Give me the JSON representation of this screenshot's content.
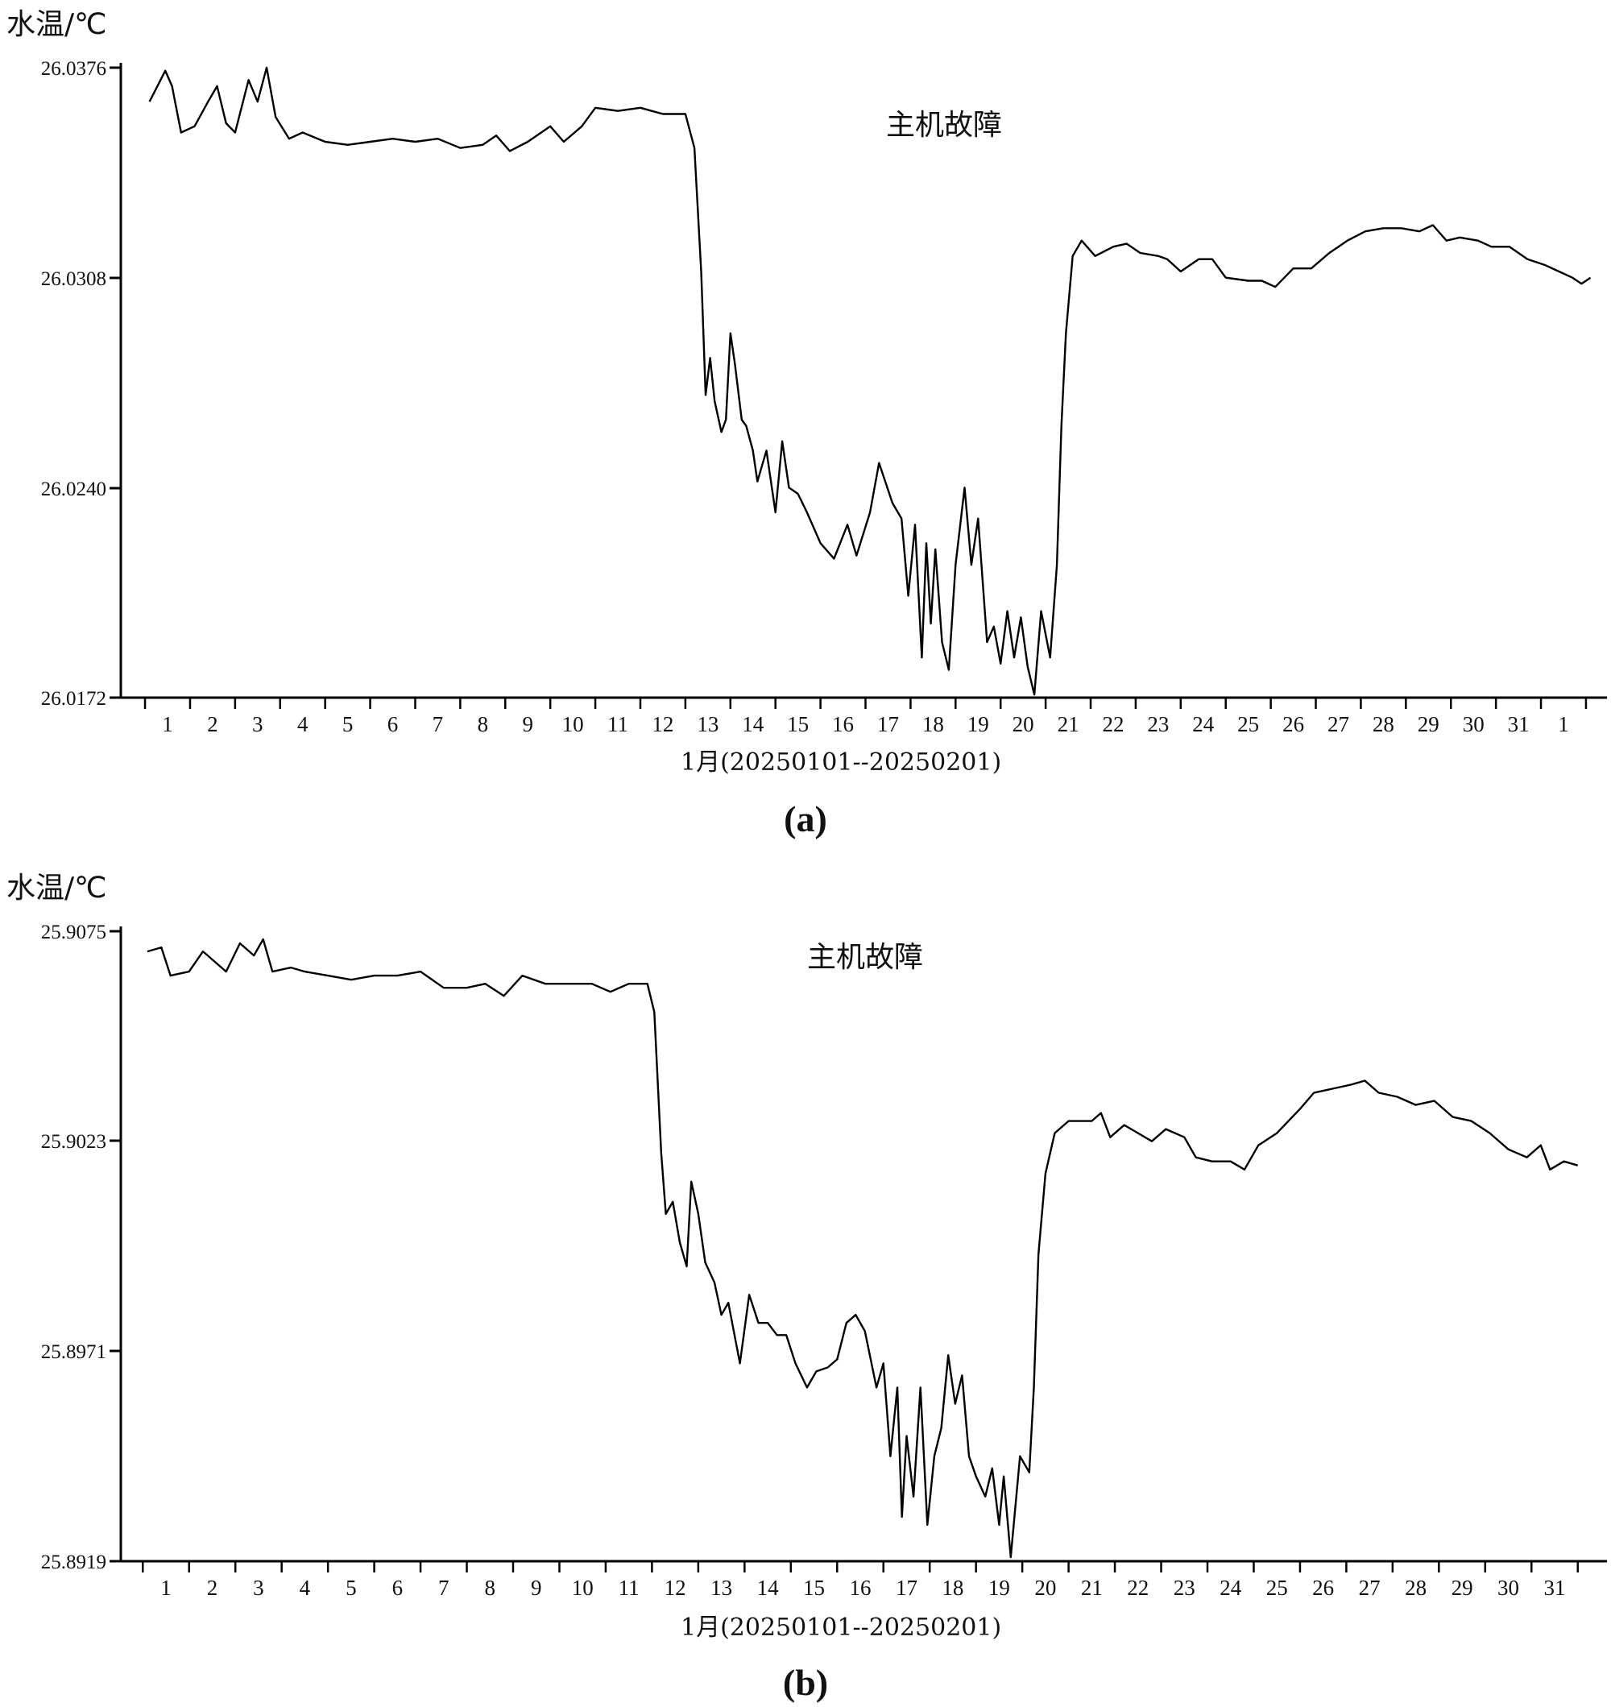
{
  "chart_data": [
    {
      "type": "line",
      "panel_label": "(a)",
      "ylabel": "水温/℃",
      "xlabel": "1月(20250101--20250201)",
      "annotation": "主机故障",
      "yticks": [
        "26.0376",
        "26.0308",
        "26.0240",
        "26.0172"
      ],
      "ylim": [
        26.0172,
        26.0376
      ],
      "xticks": [
        "1",
        "2",
        "3",
        "4",
        "5",
        "6",
        "7",
        "8",
        "9",
        "10",
        "11",
        "12",
        "13",
        "14",
        "15",
        "16",
        "17",
        "18",
        "19",
        "20",
        "21",
        "22",
        "23",
        "24",
        "25",
        "26",
        "27",
        "28",
        "29",
        "30",
        "31",
        "1"
      ],
      "x_day_range": [
        0.55,
        32.6
      ],
      "series": [
        {
          "values": [
            [
              0.6,
              26.0365
            ],
            [
              0.95,
              26.0375
            ],
            [
              1.1,
              26.037
            ],
            [
              1.3,
              26.0355
            ],
            [
              1.6,
              26.0357
            ],
            [
              1.9,
              26.0365
            ],
            [
              2.1,
              26.037
            ],
            [
              2.3,
              26.0358
            ],
            [
              2.5,
              26.0355
            ],
            [
              2.8,
              26.0372
            ],
            [
              3.0,
              26.0365
            ],
            [
              3.2,
              26.0376
            ],
            [
              3.4,
              26.036
            ],
            [
              3.7,
              26.0353
            ],
            [
              4.0,
              26.0355
            ],
            [
              4.5,
              26.0352
            ],
            [
              5.0,
              26.0351
            ],
            [
              5.5,
              26.0352
            ],
            [
              6.0,
              26.0353
            ],
            [
              6.5,
              26.0352
            ],
            [
              7.0,
              26.0353
            ],
            [
              7.5,
              26.035
            ],
            [
              8.0,
              26.0351
            ],
            [
              8.3,
              26.0354
            ],
            [
              8.6,
              26.0349
            ],
            [
              9.0,
              26.0352
            ],
            [
              9.5,
              26.0357
            ],
            [
              9.8,
              26.0352
            ],
            [
              10.2,
              26.0357
            ],
            [
              10.5,
              26.0363
            ],
            [
              11.0,
              26.0362
            ],
            [
              11.5,
              26.0363
            ],
            [
              12.0,
              26.0361
            ],
            [
              12.5,
              26.0361
            ],
            [
              12.7,
              26.035
            ],
            [
              12.85,
              26.031
            ],
            [
              12.95,
              26.027
            ],
            [
              13.05,
              26.0282
            ],
            [
              13.15,
              26.0268
            ],
            [
              13.3,
              26.0258
            ],
            [
              13.4,
              26.0262
            ],
            [
              13.5,
              26.029
            ],
            [
              13.6,
              26.028
            ],
            [
              13.75,
              26.0262
            ],
            [
              13.85,
              26.026
            ],
            [
              14.0,
              26.0252
            ],
            [
              14.1,
              26.0242
            ],
            [
              14.3,
              26.0252
            ],
            [
              14.5,
              26.0232
            ],
            [
              14.65,
              26.0255
            ],
            [
              14.8,
              26.024
            ],
            [
              15.0,
              26.0238
            ],
            [
              15.2,
              26.0232
            ],
            [
              15.5,
              26.0222
            ],
            [
              15.8,
              26.0217
            ],
            [
              16.1,
              26.0228
            ],
            [
              16.3,
              26.0218
            ],
            [
              16.6,
              26.0232
            ],
            [
              16.8,
              26.0248
            ],
            [
              17.1,
              26.0235
            ],
            [
              17.3,
              26.023
            ],
            [
              17.45,
              26.0205
            ],
            [
              17.6,
              26.0228
            ],
            [
              17.75,
              26.0185
            ],
            [
              17.85,
              26.0222
            ],
            [
              17.95,
              26.0196
            ],
            [
              18.05,
              26.022
            ],
            [
              18.2,
              26.019
            ],
            [
              18.35,
              26.0181
            ],
            [
              18.5,
              26.0215
            ],
            [
              18.7,
              26.024
            ],
            [
              18.85,
              26.0215
            ],
            [
              19.0,
              26.023
            ],
            [
              19.2,
              26.019
            ],
            [
              19.35,
              26.0195
            ],
            [
              19.5,
              26.0183
            ],
            [
              19.65,
              26.02
            ],
            [
              19.8,
              26.0185
            ],
            [
              19.95,
              26.0198
            ],
            [
              20.1,
              26.0182
            ],
            [
              20.25,
              26.0173
            ],
            [
              20.4,
              26.02
            ],
            [
              20.6,
              26.0185
            ],
            [
              20.75,
              26.0215
            ],
            [
              20.85,
              26.026
            ],
            [
              20.95,
              26.029
            ],
            [
              21.1,
              26.0315
            ],
            [
              21.3,
              26.032
            ],
            [
              21.6,
              26.0315
            ],
            [
              22.0,
              26.0318
            ],
            [
              22.3,
              26.0319
            ],
            [
              22.6,
              26.0316
            ],
            [
              23.0,
              26.0315
            ],
            [
              23.2,
              26.0314
            ],
            [
              23.5,
              26.031
            ],
            [
              23.9,
              26.0314
            ],
            [
              24.2,
              26.0314
            ],
            [
              24.5,
              26.0308
            ],
            [
              25.0,
              26.0307
            ],
            [
              25.3,
              26.0307
            ],
            [
              25.6,
              26.0305
            ],
            [
              26.0,
              26.0311
            ],
            [
              26.4,
              26.0311
            ],
            [
              26.8,
              26.0316
            ],
            [
              27.2,
              26.032
            ],
            [
              27.6,
              26.0323
            ],
            [
              28.0,
              26.0324
            ],
            [
              28.4,
              26.0324
            ],
            [
              28.8,
              26.0323
            ],
            [
              29.1,
              26.0325
            ],
            [
              29.4,
              26.032
            ],
            [
              29.7,
              26.0321
            ],
            [
              30.1,
              26.032
            ],
            [
              30.4,
              26.0318
            ],
            [
              30.8,
              26.0318
            ],
            [
              31.2,
              26.0314
            ],
            [
              31.6,
              26.0312
            ],
            [
              31.9,
              26.031
            ],
            [
              32.2,
              26.0308
            ],
            [
              32.4,
              26.0306
            ],
            [
              32.6,
              26.0308
            ]
          ]
        }
      ]
    },
    {
      "type": "line",
      "panel_label": "(b)",
      "ylabel": "水温/℃",
      "xlabel": "1月(20250101--20250201)",
      "annotation": "主机故障",
      "yticks": [
        "25.9075",
        "25.9023",
        "25.8971",
        "25.8919"
      ],
      "ylim": [
        25.8919,
        25.9075
      ],
      "xticks": [
        "1",
        "2",
        "3",
        "4",
        "5",
        "6",
        "7",
        "8",
        "9",
        "10",
        "11",
        "12",
        "13",
        "14",
        "15",
        "16",
        "17",
        "18",
        "19",
        "20",
        "21",
        "22",
        "23",
        "24",
        "25",
        "26",
        "27",
        "28",
        "29",
        "30",
        "31"
      ],
      "x_day_range": [
        0.6,
        31.6
      ],
      "series": [
        {
          "values": [
            [
              0.6,
              25.907
            ],
            [
              0.9,
              25.9071
            ],
            [
              1.1,
              25.9064
            ],
            [
              1.5,
              25.9065
            ],
            [
              1.8,
              25.907
            ],
            [
              2.0,
              25.9068
            ],
            [
              2.3,
              25.9065
            ],
            [
              2.6,
              25.9072
            ],
            [
              2.9,
              25.9069
            ],
            [
              3.1,
              25.9073
            ],
            [
              3.3,
              25.9065
            ],
            [
              3.7,
              25.9066
            ],
            [
              4.0,
              25.9065
            ],
            [
              4.5,
              25.9064
            ],
            [
              5.0,
              25.9063
            ],
            [
              5.5,
              25.9064
            ],
            [
              6.0,
              25.9064
            ],
            [
              6.5,
              25.9065
            ],
            [
              7.0,
              25.9061
            ],
            [
              7.5,
              25.9061
            ],
            [
              7.9,
              25.9062
            ],
            [
              8.3,
              25.9059
            ],
            [
              8.7,
              25.9064
            ],
            [
              9.2,
              25.9062
            ],
            [
              9.7,
              25.9062
            ],
            [
              10.2,
              25.9062
            ],
            [
              10.6,
              25.906
            ],
            [
              11.0,
              25.9062
            ],
            [
              11.4,
              25.9062
            ],
            [
              11.55,
              25.9055
            ],
            [
              11.7,
              25.902
            ],
            [
              11.8,
              25.9005
            ],
            [
              11.95,
              25.9008
            ],
            [
              12.1,
              25.8998
            ],
            [
              12.25,
              25.8992
            ],
            [
              12.35,
              25.9013
            ],
            [
              12.5,
              25.9005
            ],
            [
              12.65,
              25.8993
            ],
            [
              12.85,
              25.8988
            ],
            [
              13.0,
              25.898
            ],
            [
              13.15,
              25.8983
            ],
            [
              13.4,
              25.8968
            ],
            [
              13.6,
              25.8985
            ],
            [
              13.8,
              25.8978
            ],
            [
              14.0,
              25.8978
            ],
            [
              14.2,
              25.8975
            ],
            [
              14.4,
              25.8975
            ],
            [
              14.6,
              25.8968
            ],
            [
              14.85,
              25.8962
            ],
            [
              15.05,
              25.8966
            ],
            [
              15.3,
              25.8967
            ],
            [
              15.5,
              25.8969
            ],
            [
              15.7,
              25.8978
            ],
            [
              15.9,
              25.898
            ],
            [
              16.1,
              25.8976
            ],
            [
              16.35,
              25.8962
            ],
            [
              16.5,
              25.8968
            ],
            [
              16.65,
              25.8945
            ],
            [
              16.8,
              25.8962
            ],
            [
              16.9,
              25.893
            ],
            [
              17.0,
              25.895
            ],
            [
              17.15,
              25.8935
            ],
            [
              17.3,
              25.8962
            ],
            [
              17.45,
              25.8928
            ],
            [
              17.6,
              25.8945
            ],
            [
              17.75,
              25.8952
            ],
            [
              17.9,
              25.897
            ],
            [
              18.05,
              25.8958
            ],
            [
              18.2,
              25.8965
            ],
            [
              18.35,
              25.8945
            ],
            [
              18.5,
              25.894
            ],
            [
              18.7,
              25.8935
            ],
            [
              18.85,
              25.8942
            ],
            [
              19.0,
              25.8928
            ],
            [
              19.1,
              25.894
            ],
            [
              19.25,
              25.892
            ],
            [
              19.45,
              25.8945
            ],
            [
              19.65,
              25.8941
            ],
            [
              19.75,
              25.8962
            ],
            [
              19.85,
              25.8995
            ],
            [
              20.0,
              25.9015
            ],
            [
              20.2,
              25.9025
            ],
            [
              20.5,
              25.9028
            ],
            [
              21.0,
              25.9028
            ],
            [
              21.2,
              25.903
            ],
            [
              21.4,
              25.9024
            ],
            [
              21.7,
              25.9027
            ],
            [
              22.0,
              25.9025
            ],
            [
              22.3,
              25.9023
            ],
            [
              22.6,
              25.9026
            ],
            [
              23.0,
              25.9024
            ],
            [
              23.25,
              25.9019
            ],
            [
              23.6,
              25.9018
            ],
            [
              24.0,
              25.9018
            ],
            [
              24.3,
              25.9016
            ],
            [
              24.6,
              25.9022
            ],
            [
              25.0,
              25.9025
            ],
            [
              25.5,
              25.9031
            ],
            [
              25.8,
              25.9035
            ],
            [
              26.2,
              25.9036
            ],
            [
              26.6,
              25.9037
            ],
            [
              26.9,
              25.9038
            ],
            [
              27.2,
              25.9035
            ],
            [
              27.6,
              25.9034
            ],
            [
              28.0,
              25.9032
            ],
            [
              28.4,
              25.9033
            ],
            [
              28.8,
              25.9029
            ],
            [
              29.2,
              25.9028
            ],
            [
              29.6,
              25.9025
            ],
            [
              30.0,
              25.9021
            ],
            [
              30.4,
              25.9019
            ],
            [
              30.7,
              25.9022
            ],
            [
              30.9,
              25.9016
            ],
            [
              31.2,
              25.9018
            ],
            [
              31.5,
              25.9017
            ]
          ]
        }
      ]
    }
  ]
}
